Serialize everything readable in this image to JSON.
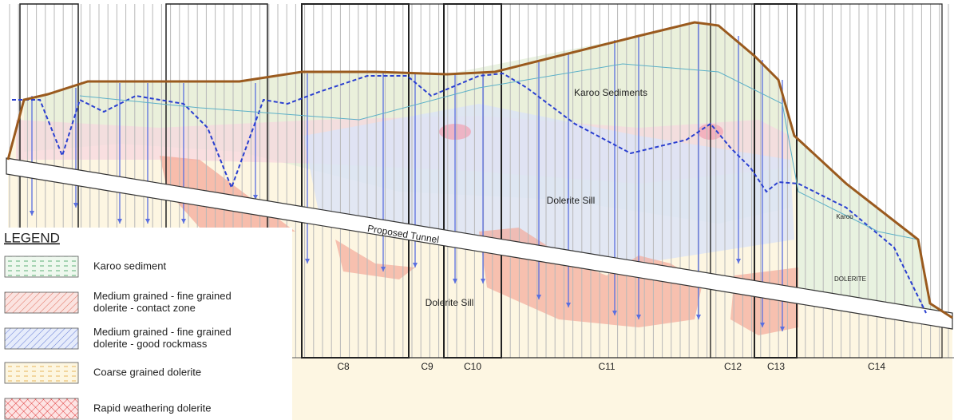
{
  "diagram": {
    "labels": {
      "karoo_sediments": "Karoo Sediments",
      "dolerite_sill_upper": "Dolerite Sill",
      "proposed_tunnel": "Proposed Tunnel",
      "dolerite_sill_lower": "Dolerite Sill",
      "karoo": "Karoo",
      "dolerite": "DOLERITE"
    },
    "sections": [
      "C8",
      "C9",
      "C10",
      "C11",
      "C12",
      "C13",
      "C14"
    ],
    "legend": {
      "title": "LEGEND",
      "items": [
        {
          "lines": [
            "Karoo sediment"
          ]
        },
        {
          "lines": [
            "Medium grained - fine grained",
            "dolerite - contact zone"
          ]
        },
        {
          "lines": [
            "Medium grained - fine grained",
            "dolerite - good rockmass"
          ]
        },
        {
          "lines": [
            "Coarse grained dolerite"
          ]
        },
        {
          "lines": [
            "Rapid weathering dolerite"
          ]
        }
      ]
    }
  }
}
